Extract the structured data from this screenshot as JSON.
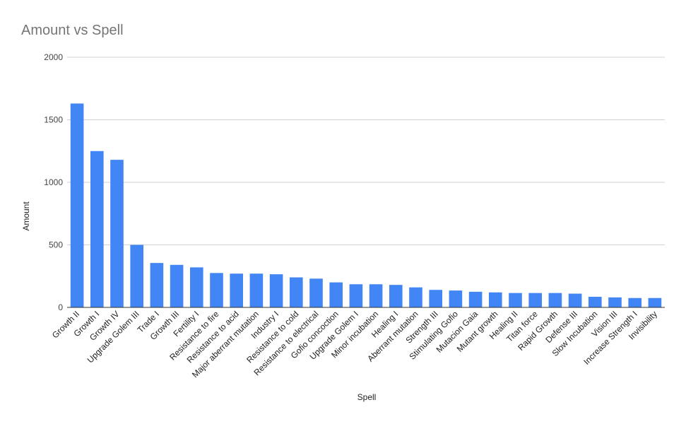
{
  "chart_data": {
    "type": "bar",
    "title": "Amount vs Spell",
    "x_label": "Spell",
    "y_label": "Amount",
    "categories": [
      "Growth II",
      "Growth I",
      "Growth IV",
      "Upgrade Golem III",
      "Trade I",
      "Growth III",
      "Fertility I",
      "Resistance to fire",
      "Resistance to acid",
      "Major aberrant mutation",
      "Industry I",
      "Resistance to cold",
      "Resistance to electrical",
      "Gofio concoction",
      "Upgrade Golem I",
      "Minor incubation",
      "Healing I",
      "Aberrant mutation",
      "Strength III",
      "Stimulating Gofio",
      "Mutacion Gaia",
      "Mutant growth",
      "Healing II",
      "Titan force",
      "Rapid Growth",
      "Defense III",
      "Slow Incubation",
      "Vision III",
      "Increase Strength I",
      "Invisibility"
    ],
    "values": [
      1630,
      1250,
      1180,
      500,
      355,
      340,
      320,
      275,
      270,
      270,
      265,
      240,
      230,
      200,
      185,
      185,
      180,
      160,
      140,
      135,
      125,
      120,
      115,
      115,
      115,
      110,
      85,
      80,
      75,
      75
    ],
    "color": "#4285f4",
    "ylim": [
      0,
      2000
    ],
    "yticks": [
      0,
      500,
      1000,
      1500,
      2000
    ],
    "grid": true
  }
}
